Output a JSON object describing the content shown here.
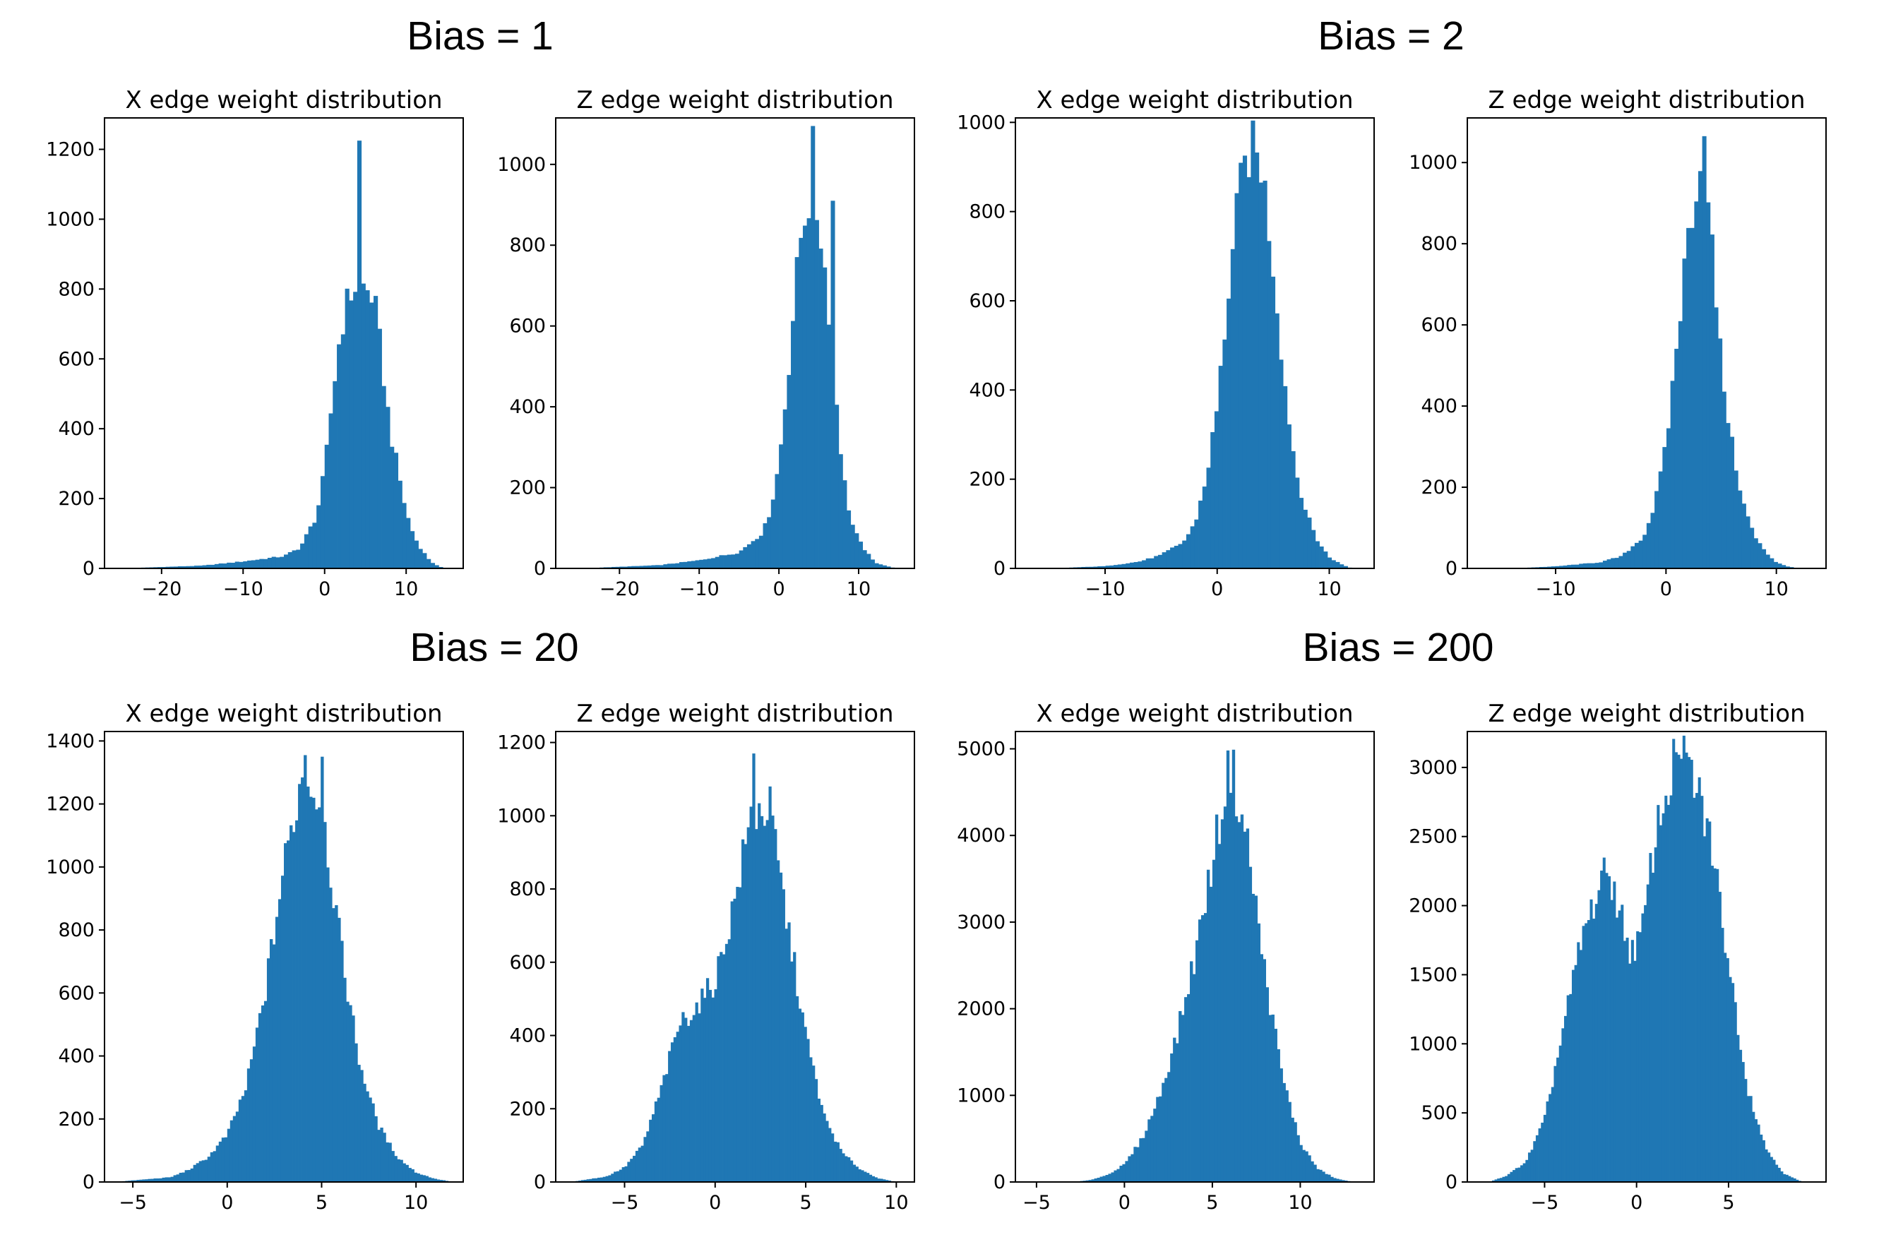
{
  "groups": [
    {
      "title": "Bias = 1"
    },
    {
      "title": "Bias = 2"
    },
    {
      "title": "Bias = 20"
    },
    {
      "title": "Bias = 200"
    }
  ],
  "chart_data": [
    {
      "type": "histogram",
      "group": "Bias = 1",
      "title": "X edge weight distribution",
      "xlim": [
        -27,
        17
      ],
      "ylim": [
        0,
        1290
      ],
      "xticks": [
        -20,
        -10,
        0,
        10
      ],
      "xtick_labels": [
        "−20",
        "−10",
        "0",
        "10"
      ],
      "yticks": [
        0,
        200,
        400,
        600,
        800,
        1000,
        1200
      ],
      "ytick_labels": [
        "0",
        "200",
        "400",
        "600",
        "800",
        "1000",
        "1200"
      ],
      "bin_width": 0.5,
      "profile": [
        [
          -25,
          0
        ],
        [
          -15,
          8
        ],
        [
          -10,
          20
        ],
        [
          -5,
          35
        ],
        [
          -3,
          60
        ],
        [
          -1,
          150
        ],
        [
          0,
          280
        ],
        [
          1,
          500
        ],
        [
          2,
          690
        ],
        [
          3,
          780
        ],
        [
          4,
          820
        ],
        [
          5,
          800
        ],
        [
          6,
          780
        ],
        [
          7,
          600
        ],
        [
          8,
          400
        ],
        [
          9,
          280
        ],
        [
          10,
          160
        ],
        [
          11,
          90
        ],
        [
          12,
          50
        ],
        [
          13,
          20
        ],
        [
          14,
          5
        ],
        [
          15,
          0
        ]
      ],
      "spikes": [
        [
          3.75,
          1225
        ]
      ]
    },
    {
      "type": "histogram",
      "group": "Bias = 1",
      "title": "Z edge weight distribution",
      "xlim": [
        -28,
        17
      ],
      "ylim": [
        0,
        1115
      ],
      "xticks": [
        -20,
        -10,
        0,
        10
      ],
      "xtick_labels": [
        "−20",
        "−10",
        "0",
        "10"
      ],
      "yticks": [
        0,
        200,
        400,
        600,
        800,
        1000
      ],
      "ytick_labels": [
        "0",
        "200",
        "400",
        "600",
        "800",
        "1000"
      ],
      "bin_width": 0.5,
      "profile": [
        [
          -25,
          0
        ],
        [
          -15,
          8
        ],
        [
          -10,
          20
        ],
        [
          -5,
          40
        ],
        [
          -2,
          90
        ],
        [
          -1,
          150
        ],
        [
          0,
          260
        ],
        [
          1,
          450
        ],
        [
          2,
          680
        ],
        [
          3,
          870
        ],
        [
          4,
          920
        ],
        [
          5,
          870
        ],
        [
          6,
          700
        ],
        [
          7,
          470
        ],
        [
          8,
          240
        ],
        [
          9,
          120
        ],
        [
          10,
          70
        ],
        [
          11,
          40
        ],
        [
          12,
          15
        ],
        [
          14,
          3
        ],
        [
          15,
          0
        ]
      ],
      "spikes": [
        [
          3.75,
          1095
        ],
        [
          6.25,
          910
        ]
      ]
    },
    {
      "type": "histogram",
      "group": "Bias = 2",
      "title": "X edge weight distribution",
      "xlim": [
        -18,
        14
      ],
      "ylim": [
        0,
        1010
      ],
      "xticks": [
        -10,
        0,
        10
      ],
      "xtick_labels": [
        "−10",
        "0",
        "10"
      ],
      "yticks": [
        0,
        200,
        400,
        600,
        800,
        1000
      ],
      "ytick_labels": [
        "0",
        "200",
        "400",
        "600",
        "800",
        "1000"
      ],
      "bin_width": 0.36,
      "profile": [
        [
          -15,
          0
        ],
        [
          -10,
          5
        ],
        [
          -7,
          15
        ],
        [
          -5,
          30
        ],
        [
          -3,
          60
        ],
        [
          -2,
          100
        ],
        [
          -1,
          200
        ],
        [
          0,
          360
        ],
        [
          1,
          620
        ],
        [
          2,
          850
        ],
        [
          3,
          950
        ],
        [
          4,
          900
        ],
        [
          5,
          680
        ],
        [
          6,
          420
        ],
        [
          7,
          220
        ],
        [
          8,
          120
        ],
        [
          9,
          60
        ],
        [
          10,
          25
        ],
        [
          11,
          10
        ],
        [
          12,
          0
        ]
      ],
      "spikes": []
    },
    {
      "type": "histogram",
      "group": "Bias = 2",
      "title": "Z edge weight distribution",
      "xlim": [
        -18,
        14.5
      ],
      "ylim": [
        0,
        1110
      ],
      "xticks": [
        -10,
        0,
        10
      ],
      "xtick_labels": [
        "−10",
        "0",
        "10"
      ],
      "yticks": [
        0,
        200,
        400,
        600,
        800,
        1000
      ],
      "ytick_labels": [
        "0",
        "200",
        "400",
        "600",
        "800",
        "1000"
      ],
      "bin_width": 0.36,
      "profile": [
        [
          -14,
          0
        ],
        [
          -10,
          5
        ],
        [
          -6,
          15
        ],
        [
          -4,
          30
        ],
        [
          -2,
          80
        ],
        [
          -1,
          160
        ],
        [
          0,
          300
        ],
        [
          1,
          560
        ],
        [
          2,
          820
        ],
        [
          3,
          1000
        ],
        [
          4,
          850
        ],
        [
          5,
          500
        ],
        [
          6,
          300
        ],
        [
          7,
          160
        ],
        [
          8,
          80
        ],
        [
          9,
          40
        ],
        [
          10,
          15
        ],
        [
          11,
          5
        ],
        [
          12,
          0
        ]
      ],
      "spikes": [
        [
          3.2,
          1065
        ]
      ]
    },
    {
      "type": "histogram",
      "group": "Bias = 20",
      "title": "X edge weight distribution",
      "xlim": [
        -6.5,
        12.5
      ],
      "ylim": [
        0,
        1430
      ],
      "xticks": [
        -5,
        0,
        5,
        10
      ],
      "xtick_labels": [
        "−5",
        "0",
        "5",
        "10"
      ],
      "yticks": [
        0,
        200,
        400,
        600,
        800,
        1000,
        1200,
        1400
      ],
      "ytick_labels": [
        "0",
        "200",
        "400",
        "600",
        "800",
        "1000",
        "1200",
        "1400"
      ],
      "bin_width": 0.15,
      "profile": [
        [
          -6,
          0
        ],
        [
          -5,
          5
        ],
        [
          -3,
          15
        ],
        [
          -2,
          40
        ],
        [
          -1,
          80
        ],
        [
          0,
          150
        ],
        [
          1,
          300
        ],
        [
          2,
          600
        ],
        [
          3,
          1000
        ],
        [
          4,
          1300
        ],
        [
          5,
          1200
        ],
        [
          6,
          750
        ],
        [
          7,
          380
        ],
        [
          8,
          180
        ],
        [
          9,
          80
        ],
        [
          10,
          30
        ],
        [
          11,
          10
        ],
        [
          12,
          0
        ]
      ],
      "spikes": [
        [
          4.05,
          1355
        ],
        [
          4.95,
          1350
        ]
      ]
    },
    {
      "type": "histogram",
      "group": "Bias = 20",
      "title": "Z edge weight distribution",
      "xlim": [
        -8.8,
        11
      ],
      "ylim": [
        0,
        1230
      ],
      "xticks": [
        -5,
        0,
        5,
        10
      ],
      "xtick_labels": [
        "−5",
        "0",
        "5",
        "10"
      ],
      "yticks": [
        0,
        200,
        400,
        600,
        800,
        1000,
        1200
      ],
      "ytick_labels": [
        "0",
        "200",
        "400",
        "600",
        "800",
        "1000",
        "1200"
      ],
      "bin_width": 0.15,
      "profile": [
        [
          -8,
          0
        ],
        [
          -6,
          15
        ],
        [
          -5,
          40
        ],
        [
          -4,
          100
        ],
        [
          -3,
          250
        ],
        [
          -2,
          430
        ],
        [
          -1,
          480
        ],
        [
          0,
          550
        ],
        [
          1,
          750
        ],
        [
          2,
          1000
        ],
        [
          3,
          1020
        ],
        [
          4,
          700
        ],
        [
          5,
          400
        ],
        [
          6,
          180
        ],
        [
          7,
          80
        ],
        [
          8,
          35
        ],
        [
          9,
          10
        ],
        [
          10,
          0
        ]
      ],
      "spikes": [
        [
          2.1,
          1170
        ]
      ]
    },
    {
      "type": "histogram",
      "group": "Bias = 200",
      "title": "X edge weight distribution",
      "xlim": [
        -6.2,
        14.2
      ],
      "ylim": [
        0,
        5200
      ],
      "xticks": [
        -5,
        0,
        5,
        10
      ],
      "xtick_labels": [
        "−5",
        "0",
        "5",
        "10"
      ],
      "yticks": [
        0,
        1000,
        2000,
        3000,
        4000,
        5000
      ],
      "ytick_labels": [
        "0",
        "1000",
        "2000",
        "3000",
        "4000",
        "5000"
      ],
      "bin_width": 0.16,
      "profile": [
        [
          -3,
          0
        ],
        [
          -2,
          20
        ],
        [
          -1,
          80
        ],
        [
          0,
          200
        ],
        [
          1,
          500
        ],
        [
          2,
          1000
        ],
        [
          3,
          1700
        ],
        [
          4,
          2600
        ],
        [
          5,
          3700
        ],
        [
          6,
          4850
        ],
        [
          7,
          3900
        ],
        [
          8,
          2400
        ],
        [
          9,
          1200
        ],
        [
          10,
          450
        ],
        [
          11,
          150
        ],
        [
          12,
          40
        ],
        [
          13,
          0
        ]
      ],
      "spikes": [
        [
          6.1,
          4990
        ]
      ]
    },
    {
      "type": "histogram",
      "group": "Bias = 200",
      "title": "Z edge weight distribution",
      "xlim": [
        -9.2,
        10.3
      ],
      "ylim": [
        0,
        3260
      ],
      "xticks": [
        -5,
        0,
        5
      ],
      "xtick_labels": [
        "−5",
        "0",
        "5"
      ],
      "yticks": [
        0,
        500,
        1000,
        1500,
        2000,
        2500,
        3000
      ],
      "ytick_labels": [
        "0",
        "500",
        "1000",
        "1500",
        "2000",
        "2500",
        "3000"
      ],
      "bin_width": 0.14,
      "profile": [
        [
          -8,
          0
        ],
        [
          -7,
          50
        ],
        [
          -6,
          150
        ],
        [
          -5,
          450
        ],
        [
          -4,
          1100
        ],
        [
          -3,
          1750
        ],
        [
          -2,
          2150
        ],
        [
          -1.5,
          2250
        ],
        [
          -1,
          2000
        ],
        [
          -0.3,
          1650
        ],
        [
          0.3,
          1800
        ],
        [
          1,
          2500
        ],
        [
          2,
          3000
        ],
        [
          2.5,
          3050
        ],
        [
          3,
          2950
        ],
        [
          4,
          2500
        ],
        [
          5,
          1600
        ],
        [
          6,
          700
        ],
        [
          7,
          250
        ],
        [
          8,
          60
        ],
        [
          9,
          0
        ]
      ],
      "spikes": [
        [
          2.1,
          3110
        ]
      ]
    }
  ]
}
